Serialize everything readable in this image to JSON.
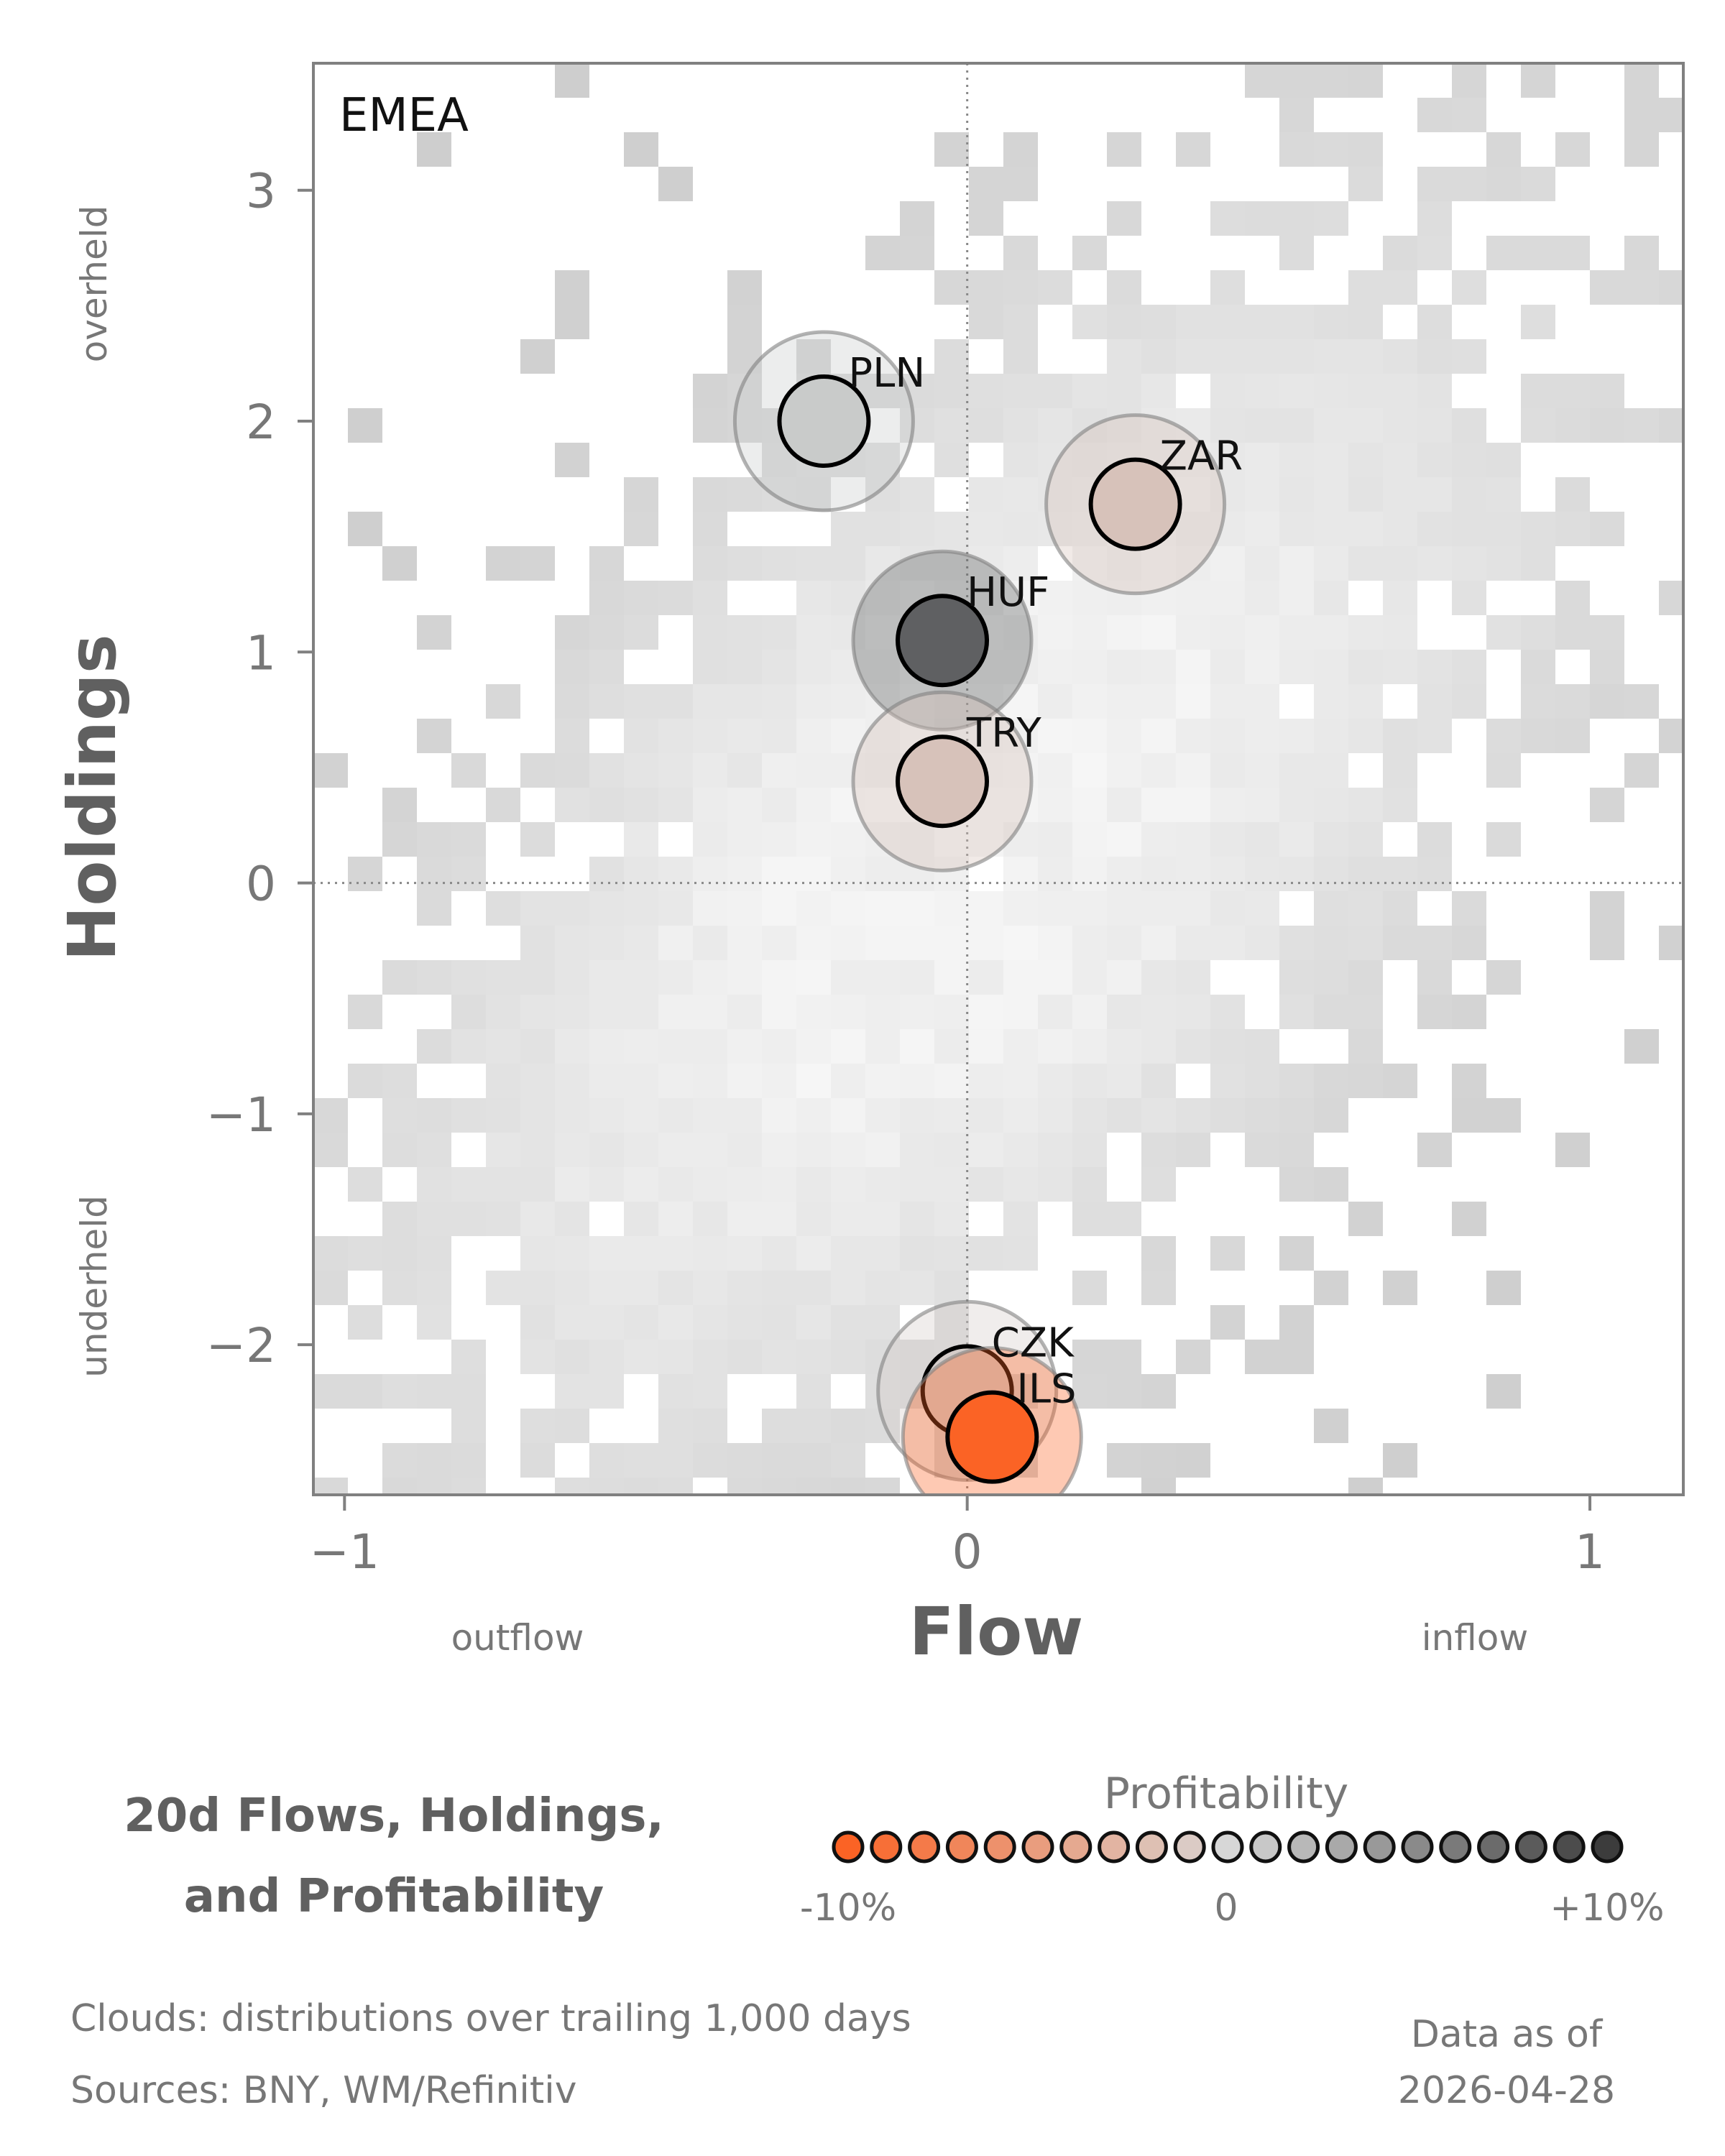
{
  "chart_data": {
    "type": "scatter",
    "panel_label": "EMEA",
    "xlabel": "Flow",
    "ylabel": "Holdings",
    "x_low_label": "outflow",
    "x_high_label": "inflow",
    "y_high_label": "overheld",
    "y_low_label": "underheld",
    "xlim": [
      -1.05,
      1.15
    ],
    "ylim": [
      -2.65,
      3.55
    ],
    "xticks": [
      -1,
      0,
      1
    ],
    "xtick_labels": [
      "−1",
      "0",
      "1"
    ],
    "yticks": [
      -2,
      -1,
      0,
      1,
      2,
      3
    ],
    "ytick_labels": [
      "−2",
      "−1",
      "0",
      "1",
      "2",
      "3"
    ],
    "reference_lines": {
      "x": 0,
      "y": 0,
      "style": "dotted"
    },
    "grid": false,
    "background": "2D histogram cloud of trailing distributions (grey)",
    "points": [
      {
        "label": "PLN",
        "x": -0.23,
        "y": 2.0,
        "profitability": 0.01,
        "color": "#c9cbca"
      },
      {
        "label": "ZAR",
        "x": 0.27,
        "y": 1.64,
        "profitability": -0.03,
        "color": "#d7c2ba"
      },
      {
        "label": "HUF",
        "x": -0.04,
        "y": 1.05,
        "profitability": 0.09,
        "color": "#5f6062"
      },
      {
        "label": "TRY",
        "x": -0.04,
        "y": 0.44,
        "profitability": -0.03,
        "color": "#d7c2ba"
      },
      {
        "label": "CZK",
        "x": 0.0,
        "y": -2.2,
        "profitability": 0.0,
        "color": "#d4ccc9"
      },
      {
        "label": "ILS",
        "x": 0.04,
        "y": -2.4,
        "profitability": -0.1,
        "color": "#fb6325"
      }
    ]
  },
  "footer": {
    "title_line1": "20d Flows, Holdings,",
    "title_line2": "and Profitability",
    "legend_title": "Profitability",
    "legend_min_label": "-10%",
    "legend_mid_label": "0",
    "legend_max_label": "+10%",
    "legend_dots": 21,
    "colormap": {
      "low": "#fb6325",
      "mid": "#d7d7d7",
      "high": "#3c3c3c"
    },
    "note_clouds": "Clouds:  distributions over trailing 1,000 days",
    "note_sources": "Sources:  BNY, WM/Refinitiv",
    "asof_line1": "Data as of",
    "asof_line2": "2026-04-28"
  }
}
